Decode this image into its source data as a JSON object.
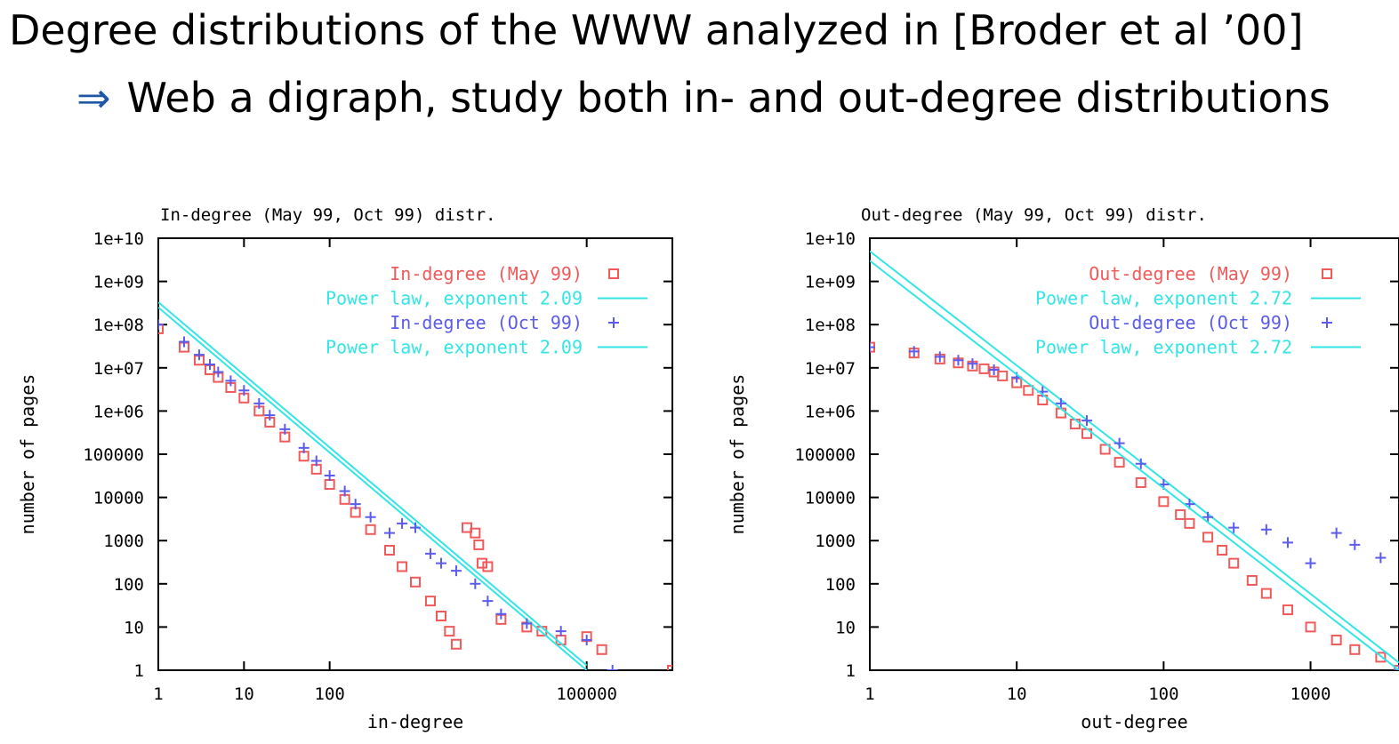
{
  "slide": {
    "title": "Degree distributions of the WWW analyzed in [Broder et al ’00]",
    "bullet_arrow": "⇒",
    "bullet_text": "Web a digraph, study both in- and out-degree distributions"
  },
  "colors": {
    "may": "#f05a5a",
    "oct": "#5b5bee",
    "fit": "#33e5e5",
    "arrow": "#1f57a5"
  },
  "chart_data": [
    {
      "type": "scatter",
      "title": "In-degree (May 99, Oct 99) distr.",
      "xlabel": "in-degree",
      "ylabel": "number of pages",
      "log_x": true,
      "log_y": true,
      "xlim": [
        1,
        1000000
      ],
      "ylim": [
        1,
        10000000000
      ],
      "x_ticks": [
        1,
        10,
        100,
        100000
      ],
      "x_tick_labels": [
        "1",
        "10",
        "100",
        "100000"
      ],
      "y_ticks": [
        1,
        10,
        100,
        1000,
        10000,
        100000,
        1000000,
        10000000,
        100000000,
        1000000000,
        10000000000
      ],
      "y_tick_labels": [
        "1",
        "10",
        "100",
        "1000",
        "10000",
        "100000",
        "1e+06",
        "1e+07",
        "1e+08",
        "1e+09",
        "1e+10"
      ],
      "legend_position": "top-right",
      "series": [
        {
          "name": "In-degree (May 99)",
          "marker": "square",
          "color": "#f05a5a",
          "x": [
            1,
            2,
            3,
            4,
            5,
            7,
            10,
            15,
            20,
            30,
            50,
            70,
            100,
            150,
            200,
            300,
            500,
            700,
            1000,
            1500,
            2000,
            2500,
            3000,
            4000,
            5000,
            5500,
            6000,
            7000,
            10000,
            20000,
            30000,
            50000,
            100000,
            150000,
            1000000
          ],
          "y": [
            80000000,
            30000000,
            15000000,
            9000000,
            6000000,
            3500000,
            2000000,
            1000000,
            550000,
            250000,
            90000,
            45000,
            20000,
            9000,
            4500,
            1800,
            600,
            250,
            110,
            40,
            18,
            8,
            4,
            2000,
            1500,
            800,
            300,
            250,
            15,
            10,
            8,
            5,
            6,
            3,
            1
          ]
        },
        {
          "name": "Power law, exponent 2.09",
          "marker": "line",
          "color": "#33e5e5",
          "x": [
            1,
            100000
          ],
          "y": [
            250000000,
            1
          ]
        },
        {
          "name": "In-degree (Oct 99)",
          "marker": "plus",
          "color": "#5b5bee",
          "x": [
            1,
            2,
            3,
            4,
            5,
            7,
            10,
            15,
            20,
            30,
            50,
            70,
            100,
            150,
            200,
            300,
            500,
            700,
            1000,
            1500,
            2000,
            3000,
            5000,
            7000,
            10000,
            20000,
            50000,
            100000,
            200000
          ],
          "y": [
            100000000,
            40000000,
            20000000,
            12000000,
            8000000,
            5000000,
            3000000,
            1500000,
            800000,
            380000,
            140000,
            70000,
            32000,
            14000,
            7000,
            3500,
            1500,
            2500,
            2000,
            500,
            300,
            200,
            100,
            40,
            20,
            12,
            8,
            5,
            1
          ]
        },
        {
          "name": "Power law, exponent 2.09",
          "marker": "line",
          "color": "#33e5e5",
          "x": [
            1,
            100000
          ],
          "y": [
            330000000,
            1.3
          ]
        }
      ]
    },
    {
      "type": "scatter",
      "title": "Out-degree (May 99, Oct 99) distr.",
      "xlabel": "out-degree",
      "ylabel": "number of pages",
      "log_x": true,
      "log_y": true,
      "xlim": [
        1,
        4000
      ],
      "ylim": [
        1,
        10000000000
      ],
      "x_ticks": [
        1,
        10,
        100,
        1000
      ],
      "x_tick_labels": [
        "1",
        "10",
        "100",
        "1000"
      ],
      "y_ticks": [
        1,
        10,
        100,
        1000,
        10000,
        100000,
        1000000,
        10000000,
        100000000,
        1000000000,
        10000000000
      ],
      "y_tick_labels": [
        "1",
        "10",
        "100",
        "1000",
        "10000",
        "100000",
        "1e+06",
        "1e+07",
        "1e+08",
        "1e+09",
        "1e+10"
      ],
      "legend_position": "top-right",
      "series": [
        {
          "name": "Out-degree (May 99)",
          "marker": "square",
          "color": "#f05a5a",
          "x": [
            1,
            2,
            3,
            4,
            5,
            6,
            7,
            8,
            10,
            12,
            15,
            20,
            25,
            30,
            40,
            50,
            70,
            100,
            130,
            150,
            200,
            250,
            300,
            400,
            500,
            700,
            1000,
            1500,
            2000,
            3000,
            4000
          ],
          "y": [
            30000000,
            22000000,
            16000000,
            13000000,
            11000000,
            9500000,
            8000000,
            6500000,
            4500000,
            3000000,
            1800000,
            900000,
            500000,
            300000,
            130000,
            65000,
            22000,
            8000,
            4000,
            2500,
            1200,
            600,
            300,
            120,
            60,
            25,
            10,
            5,
            3,
            2,
            1
          ]
        },
        {
          "name": "Power law, exponent 2.72",
          "marker": "line",
          "color": "#33e5e5",
          "x": [
            1,
            4000
          ],
          "y": [
            5000000000,
            1.5
          ]
        },
        {
          "name": "Out-degree (Oct 99)",
          "marker": "plus",
          "color": "#5b5bee",
          "x": [
            1,
            2,
            3,
            4,
            5,
            7,
            10,
            15,
            20,
            30,
            50,
            70,
            100,
            150,
            200,
            300,
            500,
            700,
            1000,
            1500,
            2000,
            3000,
            4000
          ],
          "y": [
            30000000,
            24000000,
            18000000,
            15000000,
            12500000,
            9000000,
            6000000,
            2800000,
            1500000,
            600000,
            180000,
            60000,
            20000,
            7000,
            3500,
            2000,
            1800,
            900,
            300,
            1500,
            800,
            400,
            1
          ]
        },
        {
          "name": "Power law, exponent 2.72",
          "marker": "line",
          "color": "#33e5e5",
          "x": [
            1,
            4000
          ],
          "y": [
            3000000000,
            1
          ]
        }
      ]
    }
  ]
}
